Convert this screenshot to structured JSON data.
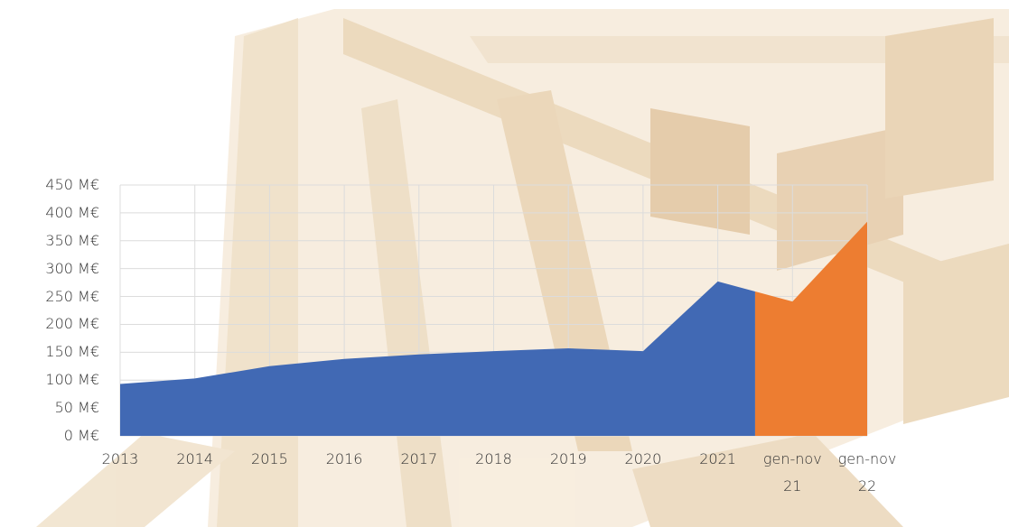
{
  "chart_data": {
    "type": "area",
    "categories": [
      "2013",
      "2014",
      "2015",
      "2016",
      "2017",
      "2018",
      "2019",
      "2020",
      "2021",
      "gen-nov 21",
      "gen-nov 22"
    ],
    "series": [
      {
        "color": "#4169b4",
        "values": [
          93,
          103,
          125,
          138,
          146,
          152,
          157,
          152,
          277,
          null,
          null
        ]
      },
      {
        "color": "#ed7d31",
        "values": [
          null,
          null,
          null,
          null,
          null,
          null,
          null,
          null,
          null,
          241,
          384
        ]
      }
    ],
    "ylim": [
      0,
      450
    ],
    "yticks": [
      {
        "value": 0,
        "label": "0 M€"
      },
      {
        "value": 50,
        "label": "50 M€"
      },
      {
        "value": 100,
        "label": "100 M€"
      },
      {
        "value": 150,
        "label": "150 M€"
      },
      {
        "value": 200,
        "label": "200 M€"
      },
      {
        "value": 250,
        "label": "250 M€"
      },
      {
        "value": 300,
        "label": "300 M€"
      },
      {
        "value": 350,
        "label": "350 M€"
      },
      {
        "value": 400,
        "label": "400 M€"
      },
      {
        "value": 450,
        "label": "450 M€"
      }
    ],
    "grid": true
  }
}
